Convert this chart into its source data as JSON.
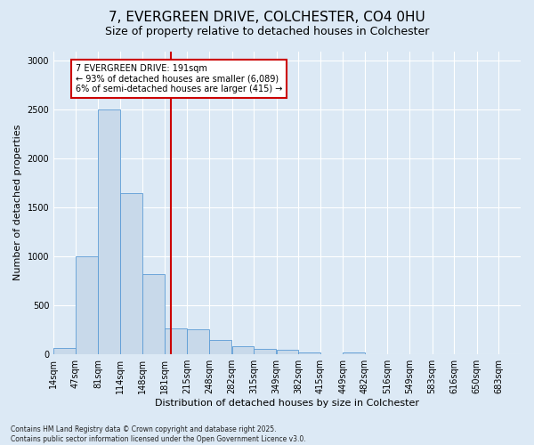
{
  "title_line1": "7, EVERGREEN DRIVE, COLCHESTER, CO4 0HU",
  "title_line2": "Size of property relative to detached houses in Colchester",
  "xlabel": "Distribution of detached houses by size in Colchester",
  "ylabel": "Number of detached properties",
  "footnote": "Contains HM Land Registry data © Crown copyright and database right 2025.\nContains public sector information licensed under the Open Government Licence v3.0.",
  "bin_edges": [
    14,
    47,
    81,
    114,
    148,
    181,
    215,
    248,
    282,
    315,
    349,
    382,
    415,
    449,
    482,
    516,
    549,
    583,
    616,
    650,
    683
  ],
  "bin_labels": [
    "14sqm",
    "47sqm",
    "81sqm",
    "114sqm",
    "148sqm",
    "181sqm",
    "215sqm",
    "248sqm",
    "282sqm",
    "315sqm",
    "349sqm",
    "382sqm",
    "415sqm",
    "449sqm",
    "482sqm",
    "516sqm",
    "549sqm",
    "583sqm",
    "616sqm",
    "650sqm",
    "683sqm"
  ],
  "values": [
    60,
    1000,
    2500,
    1650,
    820,
    260,
    255,
    140,
    75,
    55,
    45,
    20,
    0,
    20,
    0,
    0,
    0,
    0,
    0,
    0
  ],
  "bar_color": "#c8d9ea",
  "bar_edge_color": "#5b9bd5",
  "vline_x": 191,
  "vline_color": "#cc0000",
  "annotation_text": "7 EVERGREEN DRIVE: 191sqm\n← 93% of detached houses are smaller (6,089)\n6% of semi-detached houses are larger (415) →",
  "annotation_box_facecolor": "#ffffff",
  "annotation_box_edgecolor": "#cc0000",
  "ylim": [
    0,
    3100
  ],
  "yticks": [
    0,
    500,
    1000,
    1500,
    2000,
    2500,
    3000
  ],
  "fig_bg": "#dce9f5",
  "ax_bg": "#dce9f5",
  "grid_color": "#ffffff",
  "title_fontsize": 11,
  "subtitle_fontsize": 9,
  "xlabel_fontsize": 8,
  "ylabel_fontsize": 8,
  "tick_fontsize": 7,
  "annot_fontsize": 7,
  "footnote_fontsize": 5.5
}
